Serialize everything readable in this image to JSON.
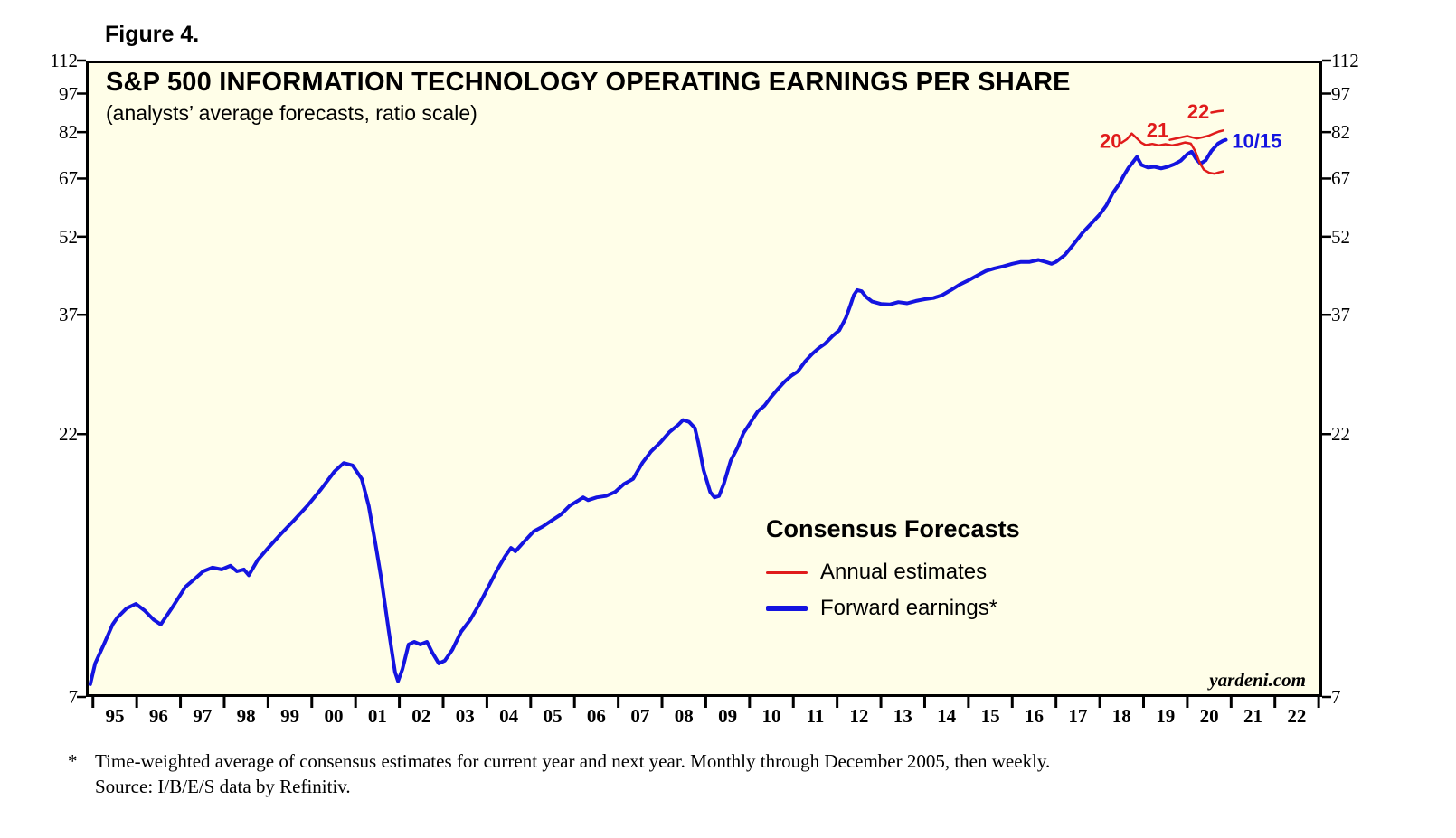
{
  "figure_label": "Figure 4.",
  "chart_data": {
    "type": "line",
    "title": "S&P 500 INFORMATION TECHNOLOGY OPERATING EARNINGS PER SHARE",
    "subtitle": "(analysts’ average forecasts, ratio scale)",
    "watermark": "yardeni.com",
    "y_scale": "log",
    "grid": false,
    "x_domain": [
      1994.84,
      2023.08
    ],
    "y_domain": [
      7,
      112
    ],
    "y_ticks": [
      7,
      22,
      37,
      52,
      67,
      82,
      97,
      112
    ],
    "x_tick_year_start": 1995,
    "x_tick_labels": [
      "95",
      "96",
      "97",
      "98",
      "99",
      "00",
      "01",
      "02",
      "03",
      "04",
      "05",
      "06",
      "07",
      "08",
      "09",
      "10",
      "11",
      "12",
      "13",
      "14",
      "15",
      "16",
      "17",
      "18",
      "19",
      "20",
      "21",
      "22"
    ],
    "colors": {
      "plot_bg": "#fffee8",
      "border": "#000000",
      "blue": "#1414e0",
      "red": "#e01b1b"
    },
    "legend": {
      "title": "Consensus Forecasts",
      "position": "center-right",
      "items": [
        {
          "label": "Annual estimates",
          "color": "#e01b1b",
          "thickness": 3
        },
        {
          "label": "Forward earnings*",
          "color": "#1414e0",
          "thickness": 6
        }
      ]
    },
    "series": [
      {
        "name": "forward-earnings",
        "label": "Forward earnings*",
        "color": "#1414e0",
        "width": 4,
        "points": [
          [
            1994.94,
            7.4
          ],
          [
            1995.05,
            8.1
          ],
          [
            1995.25,
            8.8
          ],
          [
            1995.45,
            9.6
          ],
          [
            1995.56,
            9.9
          ],
          [
            1995.77,
            10.3
          ],
          [
            1995.98,
            10.5
          ],
          [
            1996.18,
            10.2
          ],
          [
            1996.39,
            9.8
          ],
          [
            1996.55,
            9.6
          ],
          [
            1996.8,
            10.3
          ],
          [
            1997.11,
            11.3
          ],
          [
            1997.32,
            11.7
          ],
          [
            1997.52,
            12.1
          ],
          [
            1997.73,
            12.3
          ],
          [
            1997.94,
            12.2
          ],
          [
            1998.14,
            12.4
          ],
          [
            1998.29,
            12.1
          ],
          [
            1998.45,
            12.2
          ],
          [
            1998.56,
            11.9
          ],
          [
            1998.76,
            12.7
          ],
          [
            1998.97,
            13.3
          ],
          [
            1999.28,
            14.2
          ],
          [
            1999.59,
            15.1
          ],
          [
            1999.9,
            16.1
          ],
          [
            2000.21,
            17.3
          ],
          [
            2000.52,
            18.7
          ],
          [
            2000.73,
            19.4
          ],
          [
            2000.93,
            19.2
          ],
          [
            2001.14,
            18.1
          ],
          [
            2001.3,
            16.1
          ],
          [
            2001.45,
            13.7
          ],
          [
            2001.59,
            11.7
          ],
          [
            2001.76,
            9.3
          ],
          [
            2001.9,
            7.8
          ],
          [
            2001.97,
            7.5
          ],
          [
            2002.07,
            7.9
          ],
          [
            2002.21,
            8.8
          ],
          [
            2002.34,
            8.9
          ],
          [
            2002.48,
            8.8
          ],
          [
            2002.63,
            8.9
          ],
          [
            2002.75,
            8.5
          ],
          [
            2002.9,
            8.1
          ],
          [
            2003.04,
            8.2
          ],
          [
            2003.21,
            8.6
          ],
          [
            2003.41,
            9.3
          ],
          [
            2003.62,
            9.8
          ],
          [
            2003.83,
            10.5
          ],
          [
            2004.03,
            11.3
          ],
          [
            2004.24,
            12.2
          ],
          [
            2004.41,
            12.9
          ],
          [
            2004.55,
            13.4
          ],
          [
            2004.65,
            13.2
          ],
          [
            2004.86,
            13.8
          ],
          [
            2005.07,
            14.4
          ],
          [
            2005.27,
            14.7
          ],
          [
            2005.48,
            15.1
          ],
          [
            2005.69,
            15.5
          ],
          [
            2005.89,
            16.1
          ],
          [
            2006.1,
            16.5
          ],
          [
            2006.2,
            16.7
          ],
          [
            2006.31,
            16.5
          ],
          [
            2006.51,
            16.7
          ],
          [
            2006.72,
            16.8
          ],
          [
            2006.93,
            17.1
          ],
          [
            2007.13,
            17.7
          ],
          [
            2007.34,
            18.1
          ],
          [
            2007.55,
            19.4
          ],
          [
            2007.75,
            20.4
          ],
          [
            2007.96,
            21.2
          ],
          [
            2008.17,
            22.2
          ],
          [
            2008.37,
            22.9
          ],
          [
            2008.48,
            23.4
          ],
          [
            2008.62,
            23.2
          ],
          [
            2008.75,
            22.6
          ],
          [
            2008.83,
            21.2
          ],
          [
            2008.95,
            18.8
          ],
          [
            2009.1,
            17.1
          ],
          [
            2009.2,
            16.7
          ],
          [
            2009.3,
            16.8
          ],
          [
            2009.41,
            17.7
          ],
          [
            2009.57,
            19.6
          ],
          [
            2009.72,
            20.7
          ],
          [
            2009.86,
            22.1
          ],
          [
            2010.03,
            23.2
          ],
          [
            2010.19,
            24.3
          ],
          [
            2010.34,
            24.9
          ],
          [
            2010.48,
            25.8
          ],
          [
            2010.65,
            26.8
          ],
          [
            2010.81,
            27.7
          ],
          [
            2010.96,
            28.4
          ],
          [
            2011.1,
            28.9
          ],
          [
            2011.27,
            30.2
          ],
          [
            2011.43,
            31.2
          ],
          [
            2011.58,
            32
          ],
          [
            2011.72,
            32.6
          ],
          [
            2011.89,
            33.7
          ],
          [
            2012.05,
            34.6
          ],
          [
            2012.2,
            36.5
          ],
          [
            2012.3,
            38.5
          ],
          [
            2012.38,
            40.3
          ],
          [
            2012.46,
            41.2
          ],
          [
            2012.56,
            41
          ],
          [
            2012.66,
            40
          ],
          [
            2012.8,
            39.2
          ],
          [
            2013,
            38.8
          ],
          [
            2013.2,
            38.7
          ],
          [
            2013.4,
            39.1
          ],
          [
            2013.6,
            38.9
          ],
          [
            2013.8,
            39.3
          ],
          [
            2014,
            39.6
          ],
          [
            2014.2,
            39.8
          ],
          [
            2014.4,
            40.3
          ],
          [
            2014.6,
            41.2
          ],
          [
            2014.8,
            42.2
          ],
          [
            2015,
            43
          ],
          [
            2015.2,
            43.9
          ],
          [
            2015.4,
            44.8
          ],
          [
            2015.6,
            45.3
          ],
          [
            2015.8,
            45.7
          ],
          [
            2016,
            46.2
          ],
          [
            2016.2,
            46.6
          ],
          [
            2016.4,
            46.6
          ],
          [
            2016.6,
            47
          ],
          [
            2016.8,
            46.5
          ],
          [
            2016.9,
            46.2
          ],
          [
            2017,
            46.6
          ],
          [
            2017.2,
            48
          ],
          [
            2017.4,
            50.3
          ],
          [
            2017.6,
            52.8
          ],
          [
            2017.8,
            55
          ],
          [
            2018,
            57.3
          ],
          [
            2018.15,
            59.6
          ],
          [
            2018.3,
            62.9
          ],
          [
            2018.45,
            65.5
          ],
          [
            2018.55,
            67.9
          ],
          [
            2018.65,
            70.1
          ],
          [
            2018.75,
            71.8
          ],
          [
            2018.85,
            73.6
          ],
          [
            2018.95,
            71.1
          ],
          [
            2019.1,
            70.3
          ],
          [
            2019.25,
            70.5
          ],
          [
            2019.4,
            70
          ],
          [
            2019.55,
            70.5
          ],
          [
            2019.7,
            71.3
          ],
          [
            2019.85,
            72.4
          ],
          [
            2020,
            74.5
          ],
          [
            2020.1,
            75.3
          ],
          [
            2020.2,
            73
          ],
          [
            2020.3,
            71.5
          ],
          [
            2020.42,
            72.5
          ],
          [
            2020.55,
            75.5
          ],
          [
            2020.7,
            78
          ],
          [
            2020.82,
            79
          ],
          [
            2020.88,
            79.3
          ]
        ]
      },
      {
        "name": "annual-estimate-2020",
        "label": "Annual estimates (2020)",
        "color": "#e01b1b",
        "width": 2.5,
        "points": [
          [
            2018.5,
            78.3
          ],
          [
            2018.62,
            79.5
          ],
          [
            2018.73,
            81.5
          ],
          [
            2018.85,
            79.8
          ],
          [
            2018.95,
            78.3
          ],
          [
            2019.05,
            77.5
          ],
          [
            2019.2,
            77.9
          ],
          [
            2019.35,
            77.4
          ],
          [
            2019.5,
            77.8
          ],
          [
            2019.65,
            77.4
          ],
          [
            2019.8,
            77.8
          ],
          [
            2019.95,
            78.4
          ],
          [
            2020.08,
            78
          ],
          [
            2020.18,
            75.5
          ],
          [
            2020.28,
            71.8
          ],
          [
            2020.38,
            69.6
          ],
          [
            2020.5,
            68.7
          ],
          [
            2020.62,
            68.4
          ],
          [
            2020.72,
            68.8
          ],
          [
            2020.82,
            69.1
          ]
        ]
      },
      {
        "name": "annual-estimate-2021",
        "label": "Annual estimates (2021)",
        "color": "#e01b1b",
        "width": 2.5,
        "points": [
          [
            2019.6,
            79.3
          ],
          [
            2019.75,
            79.8
          ],
          [
            2019.9,
            80.3
          ],
          [
            2020,
            80.6
          ],
          [
            2020.1,
            80.2
          ],
          [
            2020.22,
            79.8
          ],
          [
            2020.35,
            80.2
          ],
          [
            2020.5,
            80.8
          ],
          [
            2020.62,
            81.6
          ],
          [
            2020.72,
            82.2
          ],
          [
            2020.82,
            82.6
          ]
        ]
      },
      {
        "name": "annual-estimate-2022",
        "label": "Annual estimates (2022)",
        "color": "#e01b1b",
        "width": 2.5,
        "points": [
          [
            2020.55,
            89.3
          ],
          [
            2020.7,
            89.8
          ],
          [
            2020.82,
            90
          ]
        ]
      }
    ],
    "annotations": [
      {
        "text": "20",
        "x": 2018.25,
        "y": 78.3,
        "color": "#e01b1b",
        "anchor": "middle",
        "size": 22,
        "weight": "600"
      },
      {
        "text": "21",
        "x": 2019.32,
        "y": 82.1,
        "color": "#e01b1b",
        "anchor": "middle",
        "size": 22,
        "weight": "600"
      },
      {
        "text": "22",
        "x": 2020.25,
        "y": 89.1,
        "color": "#e01b1b",
        "anchor": "middle",
        "size": 22,
        "weight": "600"
      },
      {
        "text": "10/15",
        "x": 2021.02,
        "y": 78.3,
        "color": "#1414e0",
        "anchor": "start",
        "size": 22,
        "weight": "700"
      }
    ]
  },
  "footnote": {
    "star": "*",
    "line1": "Time-weighted average of consensus estimates for current year and next year. Monthly through December 2005, then weekly.",
    "line2": "Source: I/B/E/S data by Refinitiv."
  }
}
